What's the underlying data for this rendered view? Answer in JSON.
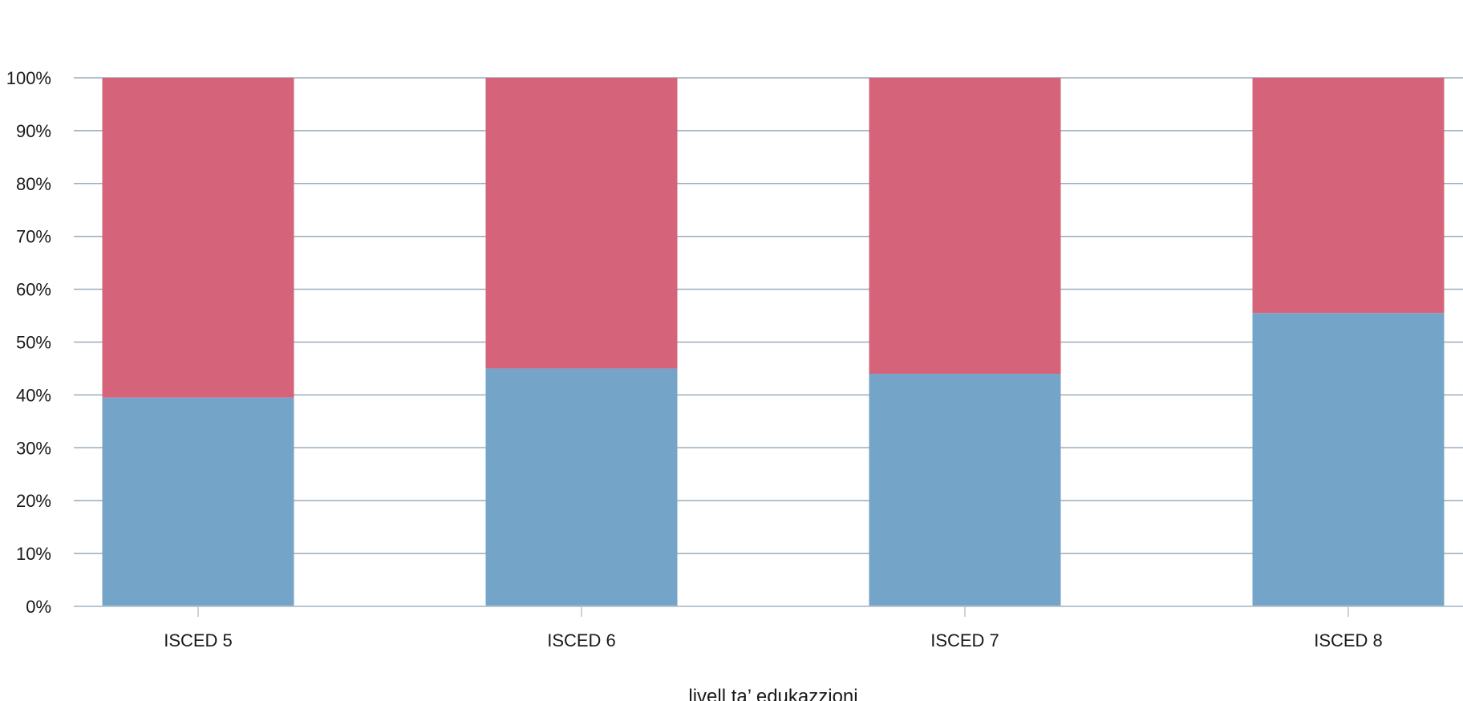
{
  "chart_data": {
    "type": "bar",
    "stacked": true,
    "normalized": true,
    "categories": [
      "ISCED 5",
      "ISCED 6",
      "ISCED 7",
      "ISCED 8"
    ],
    "series": [
      {
        "values": [
          39.5,
          45.0,
          44.0,
          55.5
        ],
        "color": "#75a4c9"
      },
      {
        "values": [
          60.5,
          55.0,
          56.0,
          44.5
        ],
        "color": "#d5647a"
      }
    ],
    "xlabel": "livell ta’ edukazzjoni",
    "ylabel": "",
    "ylim": [
      0,
      100
    ],
    "yticks": [
      "0%",
      "10%",
      "20%",
      "30%",
      "40%",
      "50%",
      "60%",
      "70%",
      "80%",
      "90%",
      "100%"
    ],
    "grid": true,
    "legend": "none",
    "grid_color": "#9aabbb",
    "axis_color": "#b8c4cf"
  }
}
